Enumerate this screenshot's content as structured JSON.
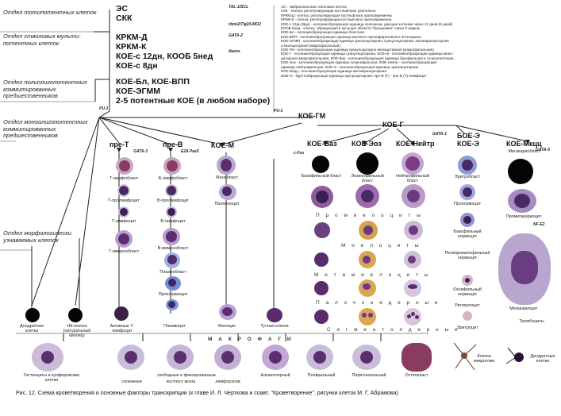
{
  "sections": {
    "totipotent": "Отдел тотипотентных клеток",
    "stem_multi": "Отдел стволовых мульти-потентных клеток",
    "poly": "Отдел полиолигопотентных коммитированных предшественников",
    "mono": "Отдел моноолигопотентных коммитированных предшественников",
    "morph": "Отдел морфологически узнаваемых клеток"
  },
  "main_labels": {
    "es": "ЭС",
    "sck": "СКК",
    "krkm_d": "КРКМ-Д",
    "krkm_k": "КРКМ-К",
    "koe_s12": "КОЕ-с 12дн, КООБ 5нед",
    "koe_s8": "КОЕ-с 8дн",
    "koe_bl": "КОЕ-Бл, КОЕ-ВПП",
    "koe_egmm": "КОЕ-ЭГММ",
    "pot25": "2-5 потентные КОЕ (в любом наборе)"
  },
  "tfactors": {
    "tal": "TAL-1/SCL",
    "rbon": "rbon2/Tlg2/LMO2",
    "gata2": "GATA-2",
    "ikaros": "Ikaros",
    "pu1a": "PU-1",
    "pu1b": "PU-1",
    "gata3": "GATA-3",
    "e2a": "E2A Pax5",
    "cfos": "c-Fos",
    "gata1": "GATA-1",
    "gata5": "GATA-5",
    "nfe2": "NF-E2"
  },
  "legend": [
    "ЭС - эмбриональная стволовая клетка",
    "СКК - клетка, репопулирующая костный мозг длительно",
    "КРКМ-Д - клетка, репопулирующая костный мозг кратковременно",
    "КРКМ-К - клетка, репопулирующая костный мозг кратковременно",
    "КОЕ-с 12дн (8дн) - колониеобразующая единица селезенки, дающая колонии через 12 дней (8 дней)",
    "КООБ 5нед - клетка, образующая в культуре области \"булыжника\" через 5 недель",
    "КОЕ-Бл - колониеобразующая единица бластная",
    "КОЕ-ВПП - колониеобразующая единица высокого пролиферативного потенциала",
    "КОЕ-ЭГММ - колониеобразующая единица эритроцитарная, гранулоцитарная, мегакариоцитарная",
    "и моноцитарная (макрофагальная)",
    "КОЕ-ГМ - колониеобразующая единица гранулоцитарно-моноцитарная (макрофагальная)",
    "КОЕ-Г - колониеобразующая единица гранулоцитарная, КОЕ-М - колониеобразующая единица моно-",
    "цитарная (макрофагальная), КОЕ-Баз - колониеобразующая единица базофильная и тучноклеточная,",
    "КОЕ-Эоз - колониеобразующая единица эозинофильная, КОЕ-Нейтр - колониеобразующая",
    "единица нейтрофильная, КОЕ-Э - колониеобразующая единица эритроцитарная",
    "КОЕ-Мкцц - колониеобразующая единица мегакариоцитарная",
    "БОЕ-Э - бурстообразующая единица эритроцитарная, пре-В (Т) - пре-В (Т)-лимфоцит"
  ],
  "lineage_headers": {
    "koe_gm": "КОЕ-ГМ",
    "koe_g": "КОЕ-Г",
    "pre_t": "пре-Т",
    "pre_b": "пре-В",
    "koe_m": "КОЕ-М",
    "koe_baz": "КОЕ-Баз",
    "koe_eoz": "КОЕ-Эоз",
    "koe_neytr": "КОЕ-Нейтр",
    "boe_e": "БОЕ-Э",
    "koe_e": "КОЕ-Э",
    "koe_mkcc": "КОЕ-Мкцц"
  },
  "cell_labels": {
    "t_lymphoblast": "Т-лимфобласт",
    "t_prolymph": "Т-пролимфоцит",
    "t_lymph": "Т-лимфоцит",
    "t_immunoblast": "Т-иммунобласт",
    "b_lymphoblast": "В-лимфобласт",
    "b_prolymph": "В-пролимфоцит",
    "b_lymph": "В-лимфоцит",
    "b_immunoblast": "В-иммунобласт",
    "plasmoblast": "Плазмобласт",
    "proplasmocyte": "Проплазмоцит",
    "plasmocyte": "Плазмоцит",
    "monoblast": "Монобласт",
    "promonocyte": "Промоноцит",
    "monocyte": "Моноцит",
    "mast": "Тучная клетка",
    "baso_blast": "Базофильный бласт",
    "eos_blast": "Эозинофильный бласт",
    "neut_blast": "Нейтрофильный бласт",
    "erythroblast": "Эритробласт",
    "pronormocyte": "Пронормоцит",
    "baso_normo": "Базофильный нормоцит",
    "poly_normo": "Полихроматофильный нормоцит",
    "oxy_normo": "Оксифильный нормоцит",
    "reticulocyte": "Ретикулоцит",
    "erythrocyte": "Эритроцит",
    "megakaryoblast": "Мегакариобласт",
    "promegakaryocyte": "Промегакариоцит",
    "megakaryocyte": "Мегакариоцит",
    "thrombocytes": "Тромбоциты",
    "dendritic": "Дендритная клетка",
    "nk": "НК-клетка (натуральный киллер)",
    "active_t": "Активные Т-лимфоцит"
  },
  "stage_labels": {
    "promyelocytes": "П р о м и е л о ц и т ы",
    "myelocytes": "М и е л о ц и т ы",
    "metamyelocytes": "М е т а м и е л о ц и т ы",
    "band": "П а л о ч к о я д е р н ы е",
    "segmented": "С е г м е н т о я д е р н ы е",
    "macrophages": "М А К Р О Ф А Г И"
  },
  "macrophages": [
    "Гистиоциты и купферовские клетки",
    "селезенки",
    "костного мозга",
    "лимфоузлов",
    "Альвеолярный",
    "Плевральный",
    "Перитонеальный",
    "Остеокласт",
    "Клетки микроглии",
    "Дендритные клетки"
  ],
  "macro_note": "свободные и фиксированные",
  "caption": "Рис. 12. Схема кроветворения и основные факторы транскрипции (к главе И. Л. Черткова и соавт. \"Кроветворение\", рисунки клеток М. Г. Абрамова)",
  "colors": {
    "cytoplasm_violet": "#b9a6cf",
    "nucleus_purple": "#5b2f6e",
    "eos_granule": "#d7a34a",
    "erythro_pink": "#d9b3c2",
    "dark_blob": "#050505"
  }
}
